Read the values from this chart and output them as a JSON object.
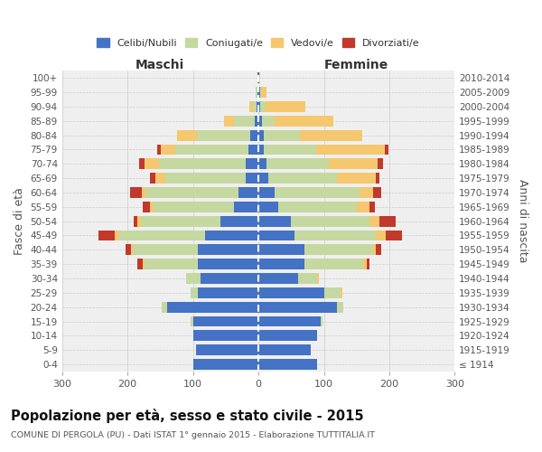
{
  "age_groups": [
    "100+",
    "95-99",
    "90-94",
    "85-89",
    "80-84",
    "75-79",
    "70-74",
    "65-69",
    "60-64",
    "55-59",
    "50-54",
    "45-49",
    "40-44",
    "35-39",
    "30-34",
    "25-29",
    "20-24",
    "15-19",
    "10-14",
    "5-9",
    "0-4"
  ],
  "birth_years": [
    "≤ 1914",
    "1915-1919",
    "1920-1924",
    "1925-1929",
    "1930-1934",
    "1935-1939",
    "1940-1944",
    "1945-1949",
    "1950-1954",
    "1955-1959",
    "1960-1964",
    "1965-1969",
    "1970-1974",
    "1975-1979",
    "1980-1984",
    "1985-1989",
    "1990-1994",
    "1995-1999",
    "2000-2004",
    "2005-2009",
    "2010-2014"
  ],
  "maschi": {
    "celibi": [
      1,
      2,
      3,
      6,
      12,
      15,
      20,
      20,
      30,
      38,
      58,
      82,
      92,
      92,
      88,
      92,
      140,
      100,
      100,
      95,
      100
    ],
    "coniugati": [
      1,
      2,
      6,
      32,
      82,
      112,
      132,
      122,
      142,
      122,
      122,
      132,
      100,
      82,
      22,
      12,
      8,
      3,
      0,
      0,
      0
    ],
    "vedovi": [
      0,
      0,
      5,
      15,
      30,
      22,
      22,
      16,
      6,
      5,
      5,
      5,
      3,
      3,
      0,
      0,
      0,
      0,
      0,
      0,
      0
    ],
    "divorziati": [
      0,
      0,
      0,
      0,
      0,
      5,
      8,
      8,
      18,
      12,
      5,
      25,
      8,
      8,
      0,
      0,
      0,
      0,
      0,
      0,
      0
    ]
  },
  "femmine": {
    "nubili": [
      1,
      2,
      3,
      5,
      8,
      8,
      12,
      15,
      25,
      30,
      50,
      55,
      70,
      70,
      60,
      100,
      120,
      95,
      90,
      80,
      90
    ],
    "coniugate": [
      0,
      2,
      8,
      20,
      55,
      80,
      95,
      105,
      130,
      120,
      120,
      125,
      105,
      90,
      30,
      25,
      10,
      3,
      0,
      0,
      0
    ],
    "vedove": [
      1,
      8,
      60,
      90,
      95,
      105,
      75,
      60,
      20,
      20,
      15,
      15,
      5,
      5,
      3,
      3,
      0,
      0,
      0,
      0,
      0
    ],
    "divorziate": [
      0,
      0,
      0,
      0,
      0,
      5,
      8,
      5,
      12,
      8,
      25,
      25,
      8,
      5,
      0,
      0,
      0,
      0,
      0,
      0,
      0
    ]
  },
  "colors": {
    "celibi_nubili": "#4472C4",
    "coniugati_e": "#C5D8A0",
    "vedovi_e": "#F5C76E",
    "divorziati_e": "#C0392B"
  },
  "title": "Popolazione per età, sesso e stato civile - 2015",
  "subtitle": "COMUNE DI PERGOLA (PU) - Dati ISTAT 1° gennaio 2015 - Elaborazione TUTTITALIA.IT",
  "ylabel_left": "Fasce di età",
  "ylabel_right": "Anni di nascita",
  "xlabel_left": "Maschi",
  "xlabel_right": "Femmine",
  "xlim": 300,
  "bg_color": "#ffffff",
  "plot_bg": "#efefef"
}
